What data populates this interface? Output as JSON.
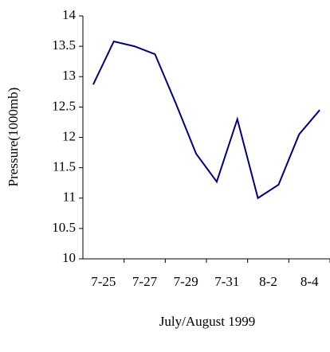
{
  "chart_data": {
    "type": "line",
    "x_label": "July/August 1999",
    "y_label": "Pressure(1000mb)",
    "categories": [
      "7-25",
      null,
      "7-27",
      null,
      "7-29",
      null,
      "7-31",
      null,
      "8-2",
      null,
      "8-4",
      null
    ],
    "series": [
      {
        "name": "Pressure",
        "color": "#000080",
        "values": [
          12.87,
          13.58,
          13.5,
          13.37,
          12.57,
          11.73,
          11.27,
          12.3,
          11.0,
          11.22,
          12.05,
          12.45
        ]
      }
    ],
    "ylim": [
      10,
      14
    ],
    "yticks": [
      10,
      10.5,
      11,
      11.5,
      12,
      12.5,
      13,
      13.5,
      14
    ],
    "grid": false
  }
}
